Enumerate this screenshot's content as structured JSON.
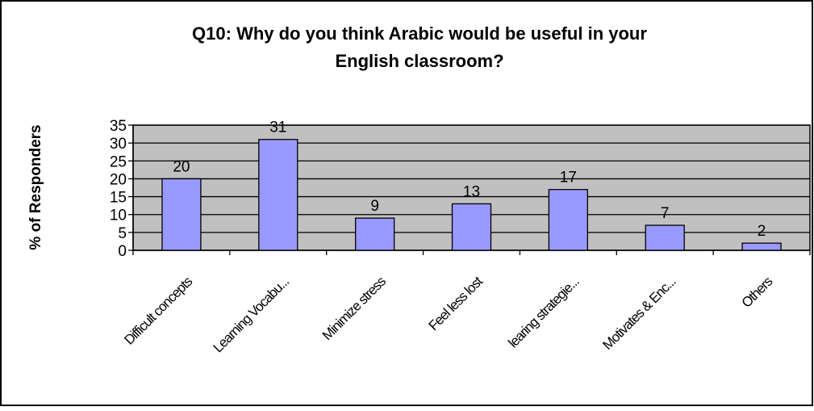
{
  "chart_data": {
    "type": "bar",
    "title_lines": [
      "Q10: Why do you think Arabic would be useful in your",
      "English classroom?"
    ],
    "xlabel": "",
    "ylabel": "% of Responders",
    "categories": [
      "Difficult concepts",
      "Learning Vocabu...",
      "Minimize stress",
      "Feel less lost",
      "learing strategie...",
      "Motivates & Enc...",
      "Others"
    ],
    "values": [
      20,
      31,
      9,
      13,
      17,
      7,
      2
    ],
    "ylim": [
      0,
      35
    ],
    "yticks": [
      0,
      5,
      10,
      15,
      20,
      25,
      30,
      35
    ],
    "grid": true,
    "legend": "none",
    "bar_color": "#9999ff",
    "plot_background": "#c0c0c0"
  }
}
